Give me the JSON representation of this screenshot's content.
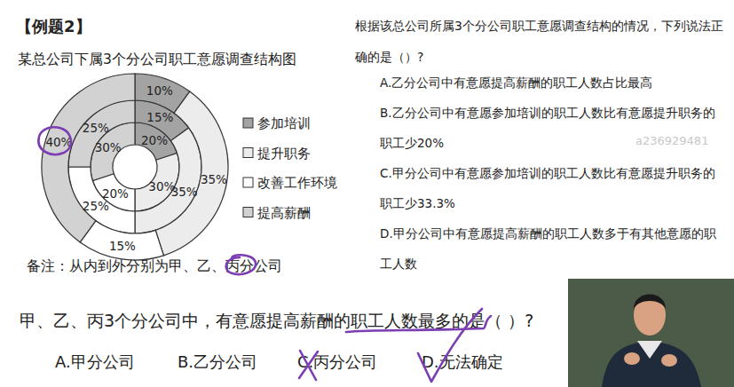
{
  "header": {
    "example": "【例题2】"
  },
  "chart_data": {
    "type": "donut",
    "title": "某总公司下属3个分公司职工意愿调查结构图",
    "categories": [
      "参加培训",
      "提升职务",
      "改善工作环境",
      "提高薪酬"
    ],
    "colors": [
      "#a3a3a3",
      "#ececec",
      "#ffffff",
      "#d2d2d2"
    ],
    "series": [
      {
        "values": [
          20,
          30,
          20,
          30
        ],
        "value_labels": [
          "20%",
          "30%",
          "20%",
          "30%"
        ]
      },
      {
        "values": [
          15,
          35,
          25,
          25
        ],
        "value_labels": [
          "15%",
          "35%",
          "25%",
          "25%"
        ]
      },
      {
        "values": [
          10,
          35,
          15,
          40
        ],
        "value_labels": [
          "10%",
          "35%",
          "15%",
          "40%"
        ]
      }
    ],
    "data_labels": true,
    "legend": "right",
    "annotations": [
      "备注：从内到外分别为甲、乙、丙分公司"
    ]
  },
  "question1": {
    "stem": "根据该总公司所属3个分公司职工意愿调查结构的情况，下列说法正确的是（）?",
    "options": [
      "A.乙分公司中有意愿提高薪酬的职工人数占比最高",
      "B.乙分公司中有意愿参加培训的职工人数比有意愿提升职务的职工少20%",
      "C.甲分公司中有意愿参加培训的职工人数比有意愿提升职务的职工少33.3%",
      "D.甲分公司中有意愿提高薪酬的职工人数多于有其他意愿的职工人数"
    ]
  },
  "watermark": "a236929481",
  "question2": {
    "stem": "甲、乙、丙3个分公司中，有意愿提高薪酬的职工人数最多的是（ ）?",
    "options": [
      "A.甲分公司",
      "B.乙分公司",
      "C.丙分公司",
      "D.无法确定"
    ]
  }
}
